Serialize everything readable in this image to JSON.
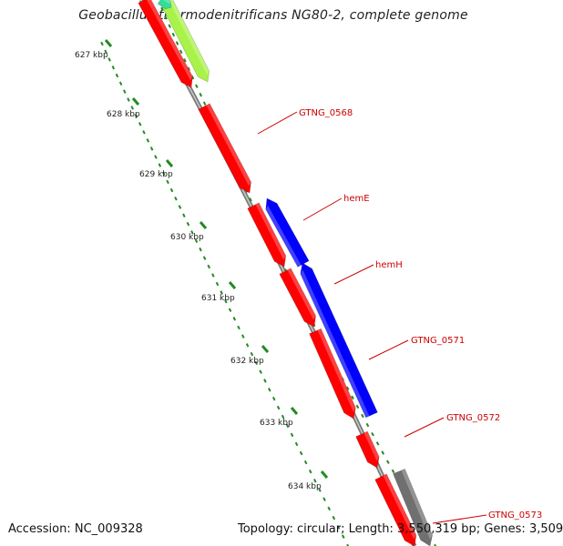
{
  "header": {
    "title": "Geobacillus thermodenitrificans NG80-2, complete genome"
  },
  "footer": {
    "accession_label": "Accession:",
    "accession": "NC_009328",
    "topology_label": "Topology:",
    "topology": "circular",
    "length_label": "Length:",
    "length": "3,550,319 bp",
    "genes_label": "Genes:",
    "genes": "3,509"
  },
  "scale": {
    "unit": "kbp",
    "ticks": [
      "627 kbp",
      "628 kbp",
      "629 kbp",
      "630 kbp",
      "631 kbp",
      "632 kbp",
      "633 kbp",
      "634 kbp"
    ]
  },
  "genes": [
    {
      "label": "GTNG_0568",
      "strand": "forward",
      "color": "#ff0000"
    },
    {
      "label": "hemE",
      "strand": "reverse",
      "color": "#0000ff"
    },
    {
      "label": "hemH",
      "strand": "reverse",
      "color": "#0000ff"
    },
    {
      "label": "GTNG_0571",
      "strand": "forward",
      "color": "#ff0000"
    },
    {
      "label": "GTNG_0572",
      "strand": "forward",
      "color": "#ff0000"
    },
    {
      "label": "GTNG_0573",
      "strand": "forward",
      "color": "#ff0000"
    }
  ],
  "colors": {
    "label_red": "#cc0000",
    "tick_green": "#228b22",
    "backbone": "#888888",
    "gene_red": "#ff0000",
    "gene_blue": "#0000ff",
    "gene_lime": "#a8f24a",
    "gene_teal": "#33dd99",
    "gene_gray": "#707070"
  }
}
